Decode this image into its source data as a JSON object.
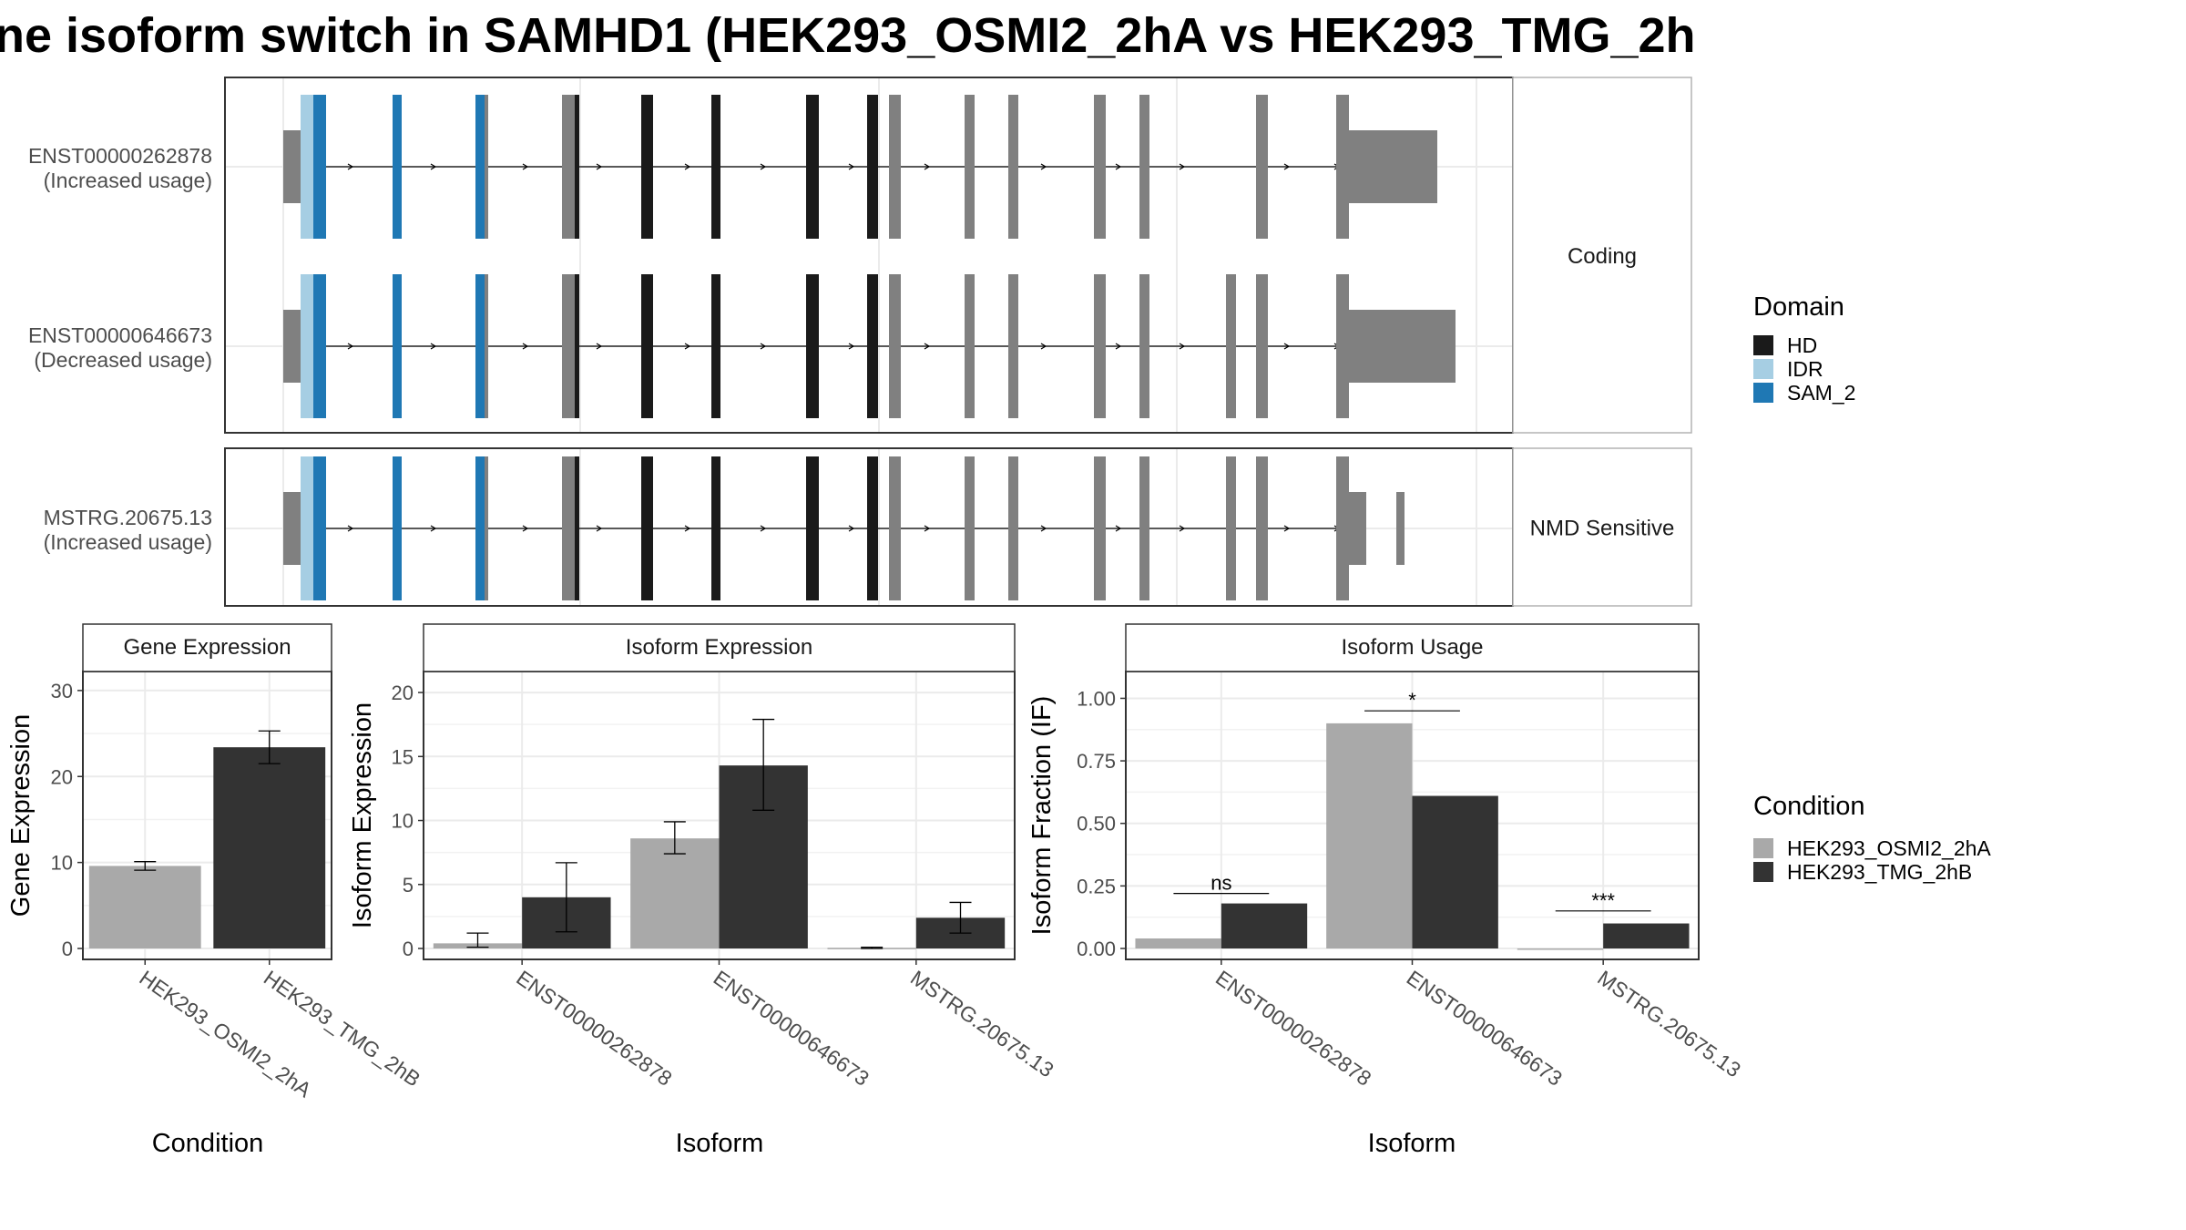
{
  "title": "ne isoform switch in SAMHD1 (HEK293_OSMI2_2hA vs HEK293_TMG_2h",
  "structure": {
    "panels": [
      {
        "label": "Coding",
        "isoforms": [
          {
            "id": "ENST00000262878",
            "usage": "(Increased usage)"
          },
          {
            "id": "ENST00000646673",
            "usage": "(Decreased usage)"
          }
        ]
      },
      {
        "label": "NMD Sensitive",
        "isoforms": [
          {
            "id": "MSTRG.20675.13",
            "usage": "(Increased usage)"
          }
        ]
      }
    ],
    "legend": {
      "title": "Domain",
      "items": [
        {
          "label": "HD",
          "color": "#1a1a1a"
        },
        {
          "label": "IDR",
          "color": "#a6cee3"
        },
        {
          "label": "SAM_2",
          "color": "#1f78b4"
        }
      ]
    },
    "exon_color": "#808080"
  },
  "conditions": {
    "title": "Condition",
    "items": [
      {
        "label": "HEK293_OSMI2_2hA",
        "color": "#a9a9a9"
      },
      {
        "label": "HEK293_TMG_2hB",
        "color": "#333333"
      }
    ]
  },
  "chart_data": [
    {
      "type": "bar",
      "title": "Gene Expression",
      "xlabel": "Condition",
      "ylabel": "Gene Expression",
      "ylim": [
        0,
        32
      ],
      "yticks": [
        0,
        10,
        20,
        30
      ],
      "categories": [
        "HEK293_OSMI2_2hA",
        "HEK293_TMG_2hB"
      ],
      "values": [
        9.6,
        23.4
      ],
      "errors": [
        [
          9.1,
          10.1
        ],
        [
          21.5,
          25.3
        ]
      ]
    },
    {
      "type": "bar",
      "title": "Isoform Expression",
      "xlabel": "Isoform",
      "ylabel": "Isoform Expression",
      "ylim": [
        0,
        21.5
      ],
      "yticks": [
        0,
        5,
        10,
        15,
        20
      ],
      "categories": [
        "ENST00000262878",
        "ENST00000646673",
        "MSTRG.20675.13"
      ],
      "series": [
        {
          "name": "HEK293_OSMI2_2hA",
          "values": [
            0.4,
            8.6,
            0.05
          ],
          "errors": [
            [
              0.1,
              1.2
            ],
            [
              7.4,
              9.9
            ],
            [
              0.0,
              0.1
            ]
          ]
        },
        {
          "name": "HEK293_TMG_2hB",
          "values": [
            4.0,
            14.3,
            2.4
          ],
          "errors": [
            [
              1.3,
              6.7
            ],
            [
              10.8,
              17.9
            ],
            [
              1.2,
              3.6
            ]
          ]
        }
      ]
    },
    {
      "type": "bar",
      "title": "Isoform Usage",
      "xlabel": "Isoform",
      "ylabel": "Isoform Fraction (IF)",
      "ylim": [
        0,
        1.1
      ],
      "yticks": [
        "0.00",
        "0.25",
        "0.50",
        "0.75",
        "1.00"
      ],
      "categories": [
        "ENST00000262878",
        "ENST00000646673",
        "MSTRG.20675.13"
      ],
      "series": [
        {
          "name": "HEK293_OSMI2_2hA",
          "values": [
            0.04,
            0.9,
            0.0
          ]
        },
        {
          "name": "HEK293_TMG_2hB",
          "values": [
            0.18,
            0.61,
            0.1
          ]
        }
      ],
      "annotations": [
        {
          "category": "ENST00000262878",
          "label": "ns",
          "y": 0.22
        },
        {
          "category": "ENST00000646673",
          "label": "*",
          "y": 0.95
        },
        {
          "category": "MSTRG.20675.13",
          "label": "***",
          "y": 0.15
        }
      ]
    }
  ]
}
